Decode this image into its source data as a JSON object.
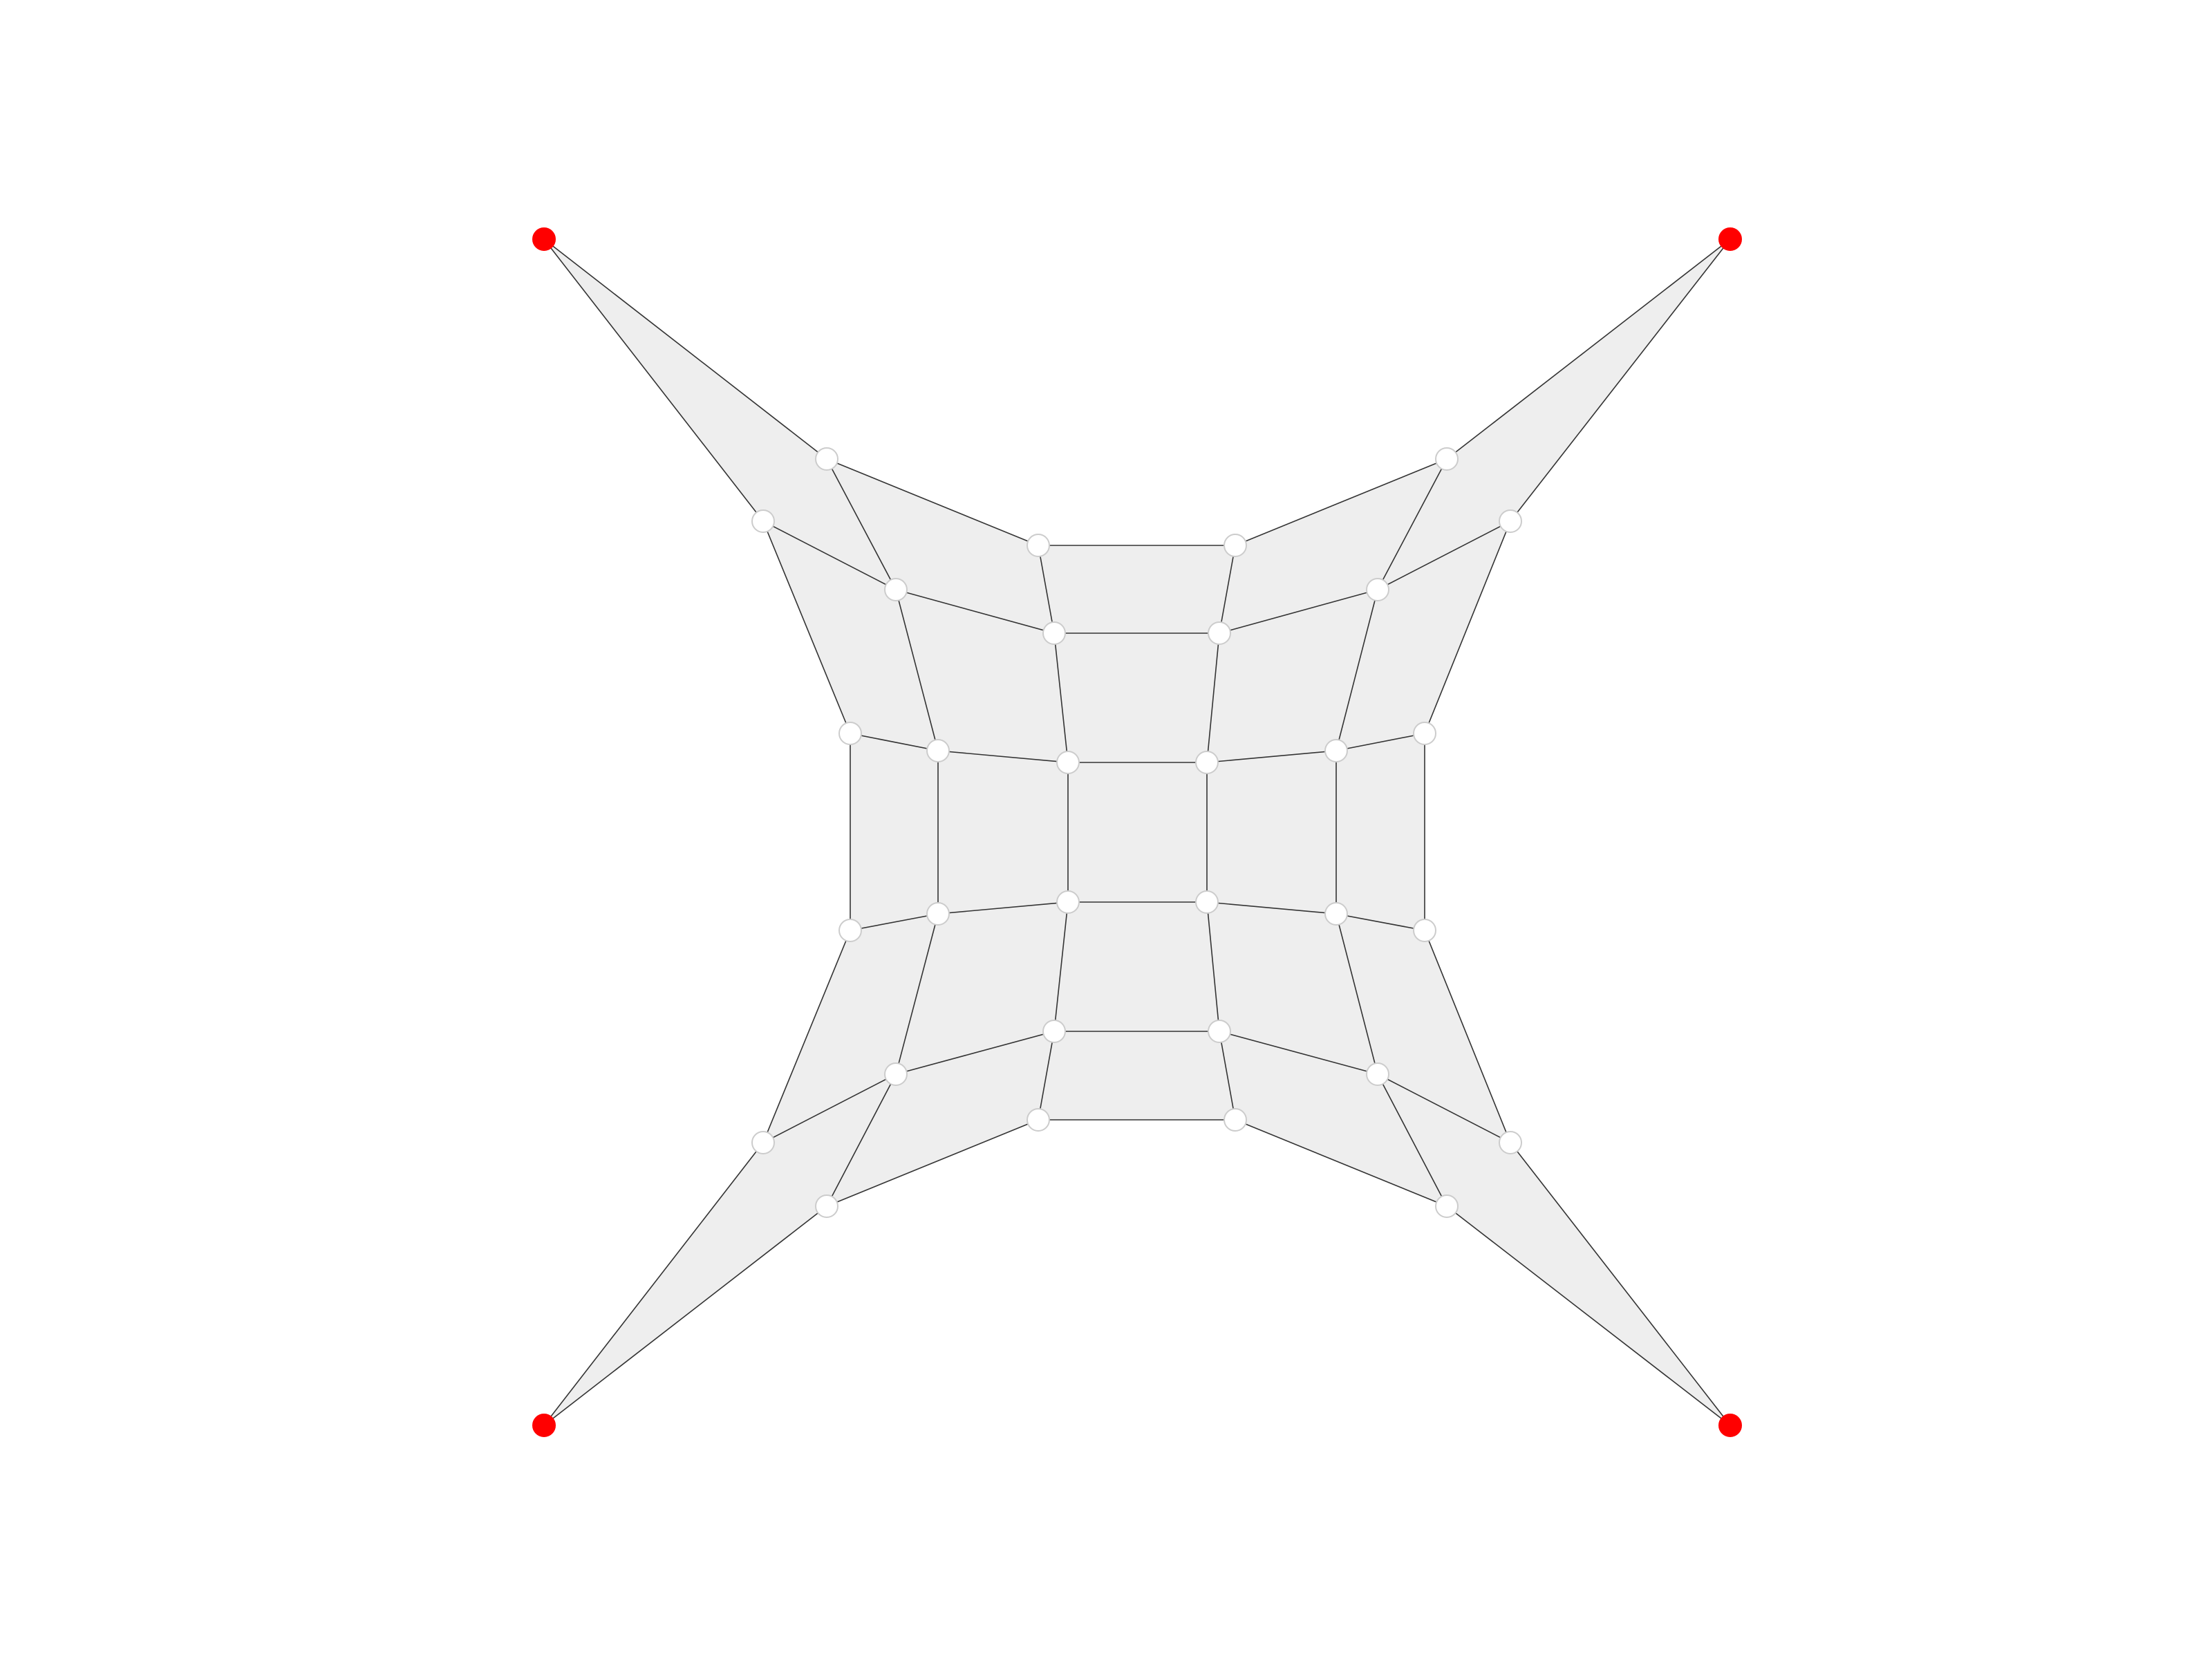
{
  "diagram": {
    "kind": "quad-mesh",
    "rows": 6,
    "cols": 6,
    "colors": {
      "background": "#ffffff",
      "face_fill": "#eeeeee",
      "edge": "#333333",
      "free_vertex_fill": "#ffffff",
      "free_vertex_stroke": "#cccccc",
      "anchor_vertex": "#ff0000"
    },
    "anchors": [
      [
        0,
        0
      ],
      [
        0,
        5
      ],
      [
        5,
        0
      ],
      [
        5,
        5
      ]
    ]
  }
}
